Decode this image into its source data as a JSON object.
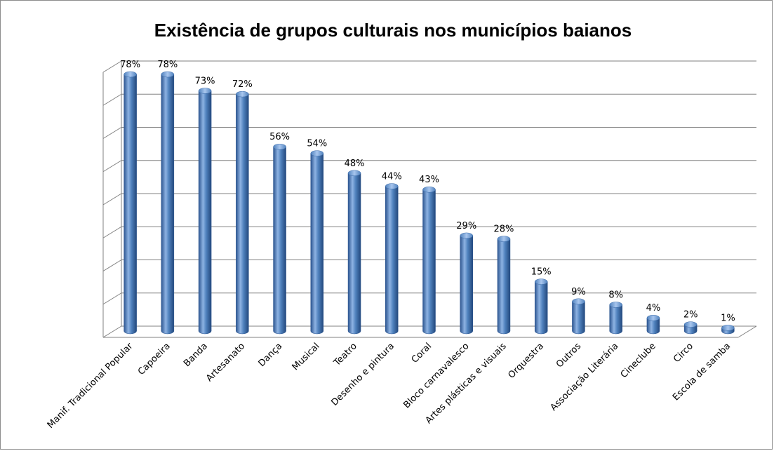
{
  "chart_data": {
    "type": "bar",
    "title": "Existência de grupos culturais nos municípios baianos",
    "categories": [
      "Manif. Tradicional Popular",
      "Capoeira",
      "Banda",
      "Artesanato",
      "Dança",
      "Musical",
      "Teatro",
      "Desenho e pintura",
      "Coral",
      "Bloco carnavalesco",
      "Artes plásticas e visuais",
      "Orquestra",
      "Outros",
      "Associação Literária",
      "Cineclube",
      "Circo",
      "Escola de samba"
    ],
    "values": [
      78,
      78,
      73,
      72,
      56,
      54,
      48,
      44,
      43,
      29,
      28,
      15,
      9,
      8,
      4,
      2,
      1
    ],
    "data_labels": [
      "78%",
      "78%",
      "73%",
      "72%",
      "56%",
      "54%",
      "48%",
      "44%",
      "43%",
      "29%",
      "28%",
      "15%",
      "9%",
      "8%",
      "4%",
      "2%",
      "1%"
    ],
    "ylim": [
      0,
      80
    ],
    "grid": true,
    "legend": "none",
    "colors": {
      "bar": "#4f81bd",
      "bar_dark": "#2c5590",
      "bar_light": "#8eb3e3",
      "grid": "#808080"
    }
  }
}
